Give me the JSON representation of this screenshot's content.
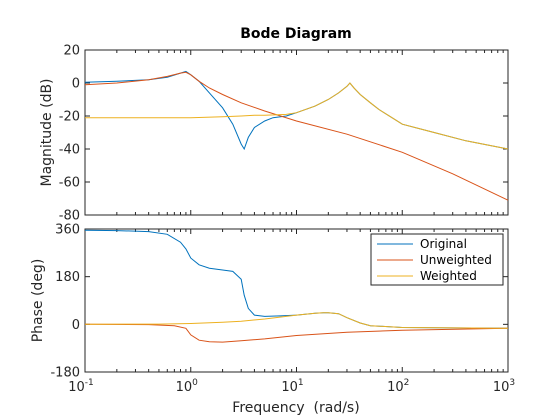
{
  "chart_data": {
    "type": "line",
    "title": "Bode Diagram",
    "xlabel": "Frequency  (rad/s)",
    "x_scale": "log",
    "xlim": [
      0.1,
      1000
    ],
    "x_ticks": [
      "10-1",
      "100",
      "101",
      "102",
      "103"
    ],
    "x_tick_values": [
      0.1,
      1,
      10,
      100,
      1000
    ],
    "grid": false,
    "legend_location": "upper-right of phase panel",
    "legend_entries": [
      "Original",
      "Unweighted",
      "Weighted"
    ],
    "colors": {
      "Original": "#0072BD",
      "Unweighted": "#D95319",
      "Weighted": "#EDB120"
    },
    "panels": [
      {
        "name": "magnitude",
        "ylabel": "Magnitude (dB)",
        "ylim": [
          -80,
          20
        ],
        "y_ticks": [
          "20",
          "0",
          "-20",
          "-40",
          "-60",
          "-80"
        ],
        "y_tick_values": [
          20,
          0,
          -20,
          -40,
          -60,
          -80
        ],
        "series": [
          {
            "name": "Original",
            "x": [
              0.1,
              0.2,
              0.4,
              0.6,
              0.8,
              0.9,
              1.0,
              1.2,
              1.5,
              2.0,
              2.5,
              3.0,
              3.2,
              3.5,
              4.0,
              5.0,
              6.0,
              8.0,
              10,
              15,
              20,
              25,
              30,
              32,
              35,
              40,
              50,
              60,
              80,
              100,
              200,
              400,
              1000
            ],
            "y": [
              0.5,
              1,
              2,
              3.5,
              6,
              7,
              5,
              1,
              -6,
              -15,
              -25,
              -37,
              -40,
              -33,
              -27,
              -23,
              -21,
              -20,
              -18,
              -14,
              -10,
              -6,
              -2,
              0,
              -3,
              -7,
              -12,
              -16,
              -21,
              -25,
              -30,
              -35,
              -40
            ]
          },
          {
            "name": "Unweighted",
            "x": [
              0.1,
              0.2,
              0.4,
              0.6,
              0.8,
              0.9,
              1.0,
              1.2,
              1.5,
              2.0,
              3.0,
              5.0,
              10,
              30,
              100,
              300,
              1000
            ],
            "y": [
              -1,
              0,
              2,
              4,
              6,
              6.5,
              5,
              1,
              -3,
              -7,
              -12,
              -17,
              -23,
              -31,
              -42,
              -55,
              -71
            ]
          },
          {
            "name": "Weighted",
            "x": [
              0.1,
              0.5,
              1,
              2,
              3,
              4,
              5,
              8,
              10,
              15,
              20,
              25,
              30,
              32,
              35,
              40,
              50,
              60,
              80,
              100,
              200,
              400,
              1000
            ],
            "y": [
              -21,
              -21,
              -21,
              -20.5,
              -20,
              -19.5,
              -19.5,
              -19,
              -18,
              -14,
              -10,
              -6,
              -2,
              0,
              -3,
              -7,
              -12,
              -16,
              -21,
              -25,
              -30,
              -35,
              -40
            ]
          }
        ]
      },
      {
        "name": "phase",
        "ylabel": "Phase (deg)",
        "ylim": [
          -180,
          360
        ],
        "y_ticks": [
          "360",
          "180",
          "0",
          "-180"
        ],
        "y_tick_values": [
          360,
          180,
          0,
          -180
        ],
        "series": [
          {
            "name": "Original",
            "x": [
              0.1,
              0.2,
              0.4,
              0.6,
              0.8,
              0.9,
              1.0,
              1.2,
              1.5,
              2.0,
              2.5,
              3.0,
              3.2,
              3.5,
              4.0,
              5.0,
              7.0,
              10,
              15,
              18,
              20,
              25,
              30,
              40,
              50,
              100,
              1000
            ],
            "y": [
              355,
              354,
              350,
              340,
              310,
              285,
              250,
              225,
              212,
              205,
              200,
              170,
              110,
              60,
              35,
              30,
              32,
              35,
              42,
              44,
              44,
              40,
              25,
              5,
              -5,
              -12,
              -15
            ]
          },
          {
            "name": "Unweighted",
            "x": [
              0.1,
              0.4,
              0.7,
              0.9,
              1.0,
              1.2,
              1.5,
              2.0,
              3.0,
              5.0,
              10,
              30,
              100,
              1000
            ],
            "y": [
              0,
              -1,
              -5,
              -15,
              -40,
              -60,
              -66,
              -67,
              -62,
              -55,
              -42,
              -30,
              -22,
              -15
            ]
          },
          {
            "name": "Weighted",
            "x": [
              0.1,
              0.5,
              1,
              2,
              3,
              5,
              8,
              10,
              15,
              18,
              20,
              25,
              30,
              40,
              50,
              100,
              1000
            ],
            "y": [
              0,
              1,
              3,
              8,
              12,
              20,
              30,
              35,
              42,
              44,
              44,
              40,
              25,
              5,
              -5,
              -12,
              -15
            ]
          }
        ]
      }
    ]
  }
}
